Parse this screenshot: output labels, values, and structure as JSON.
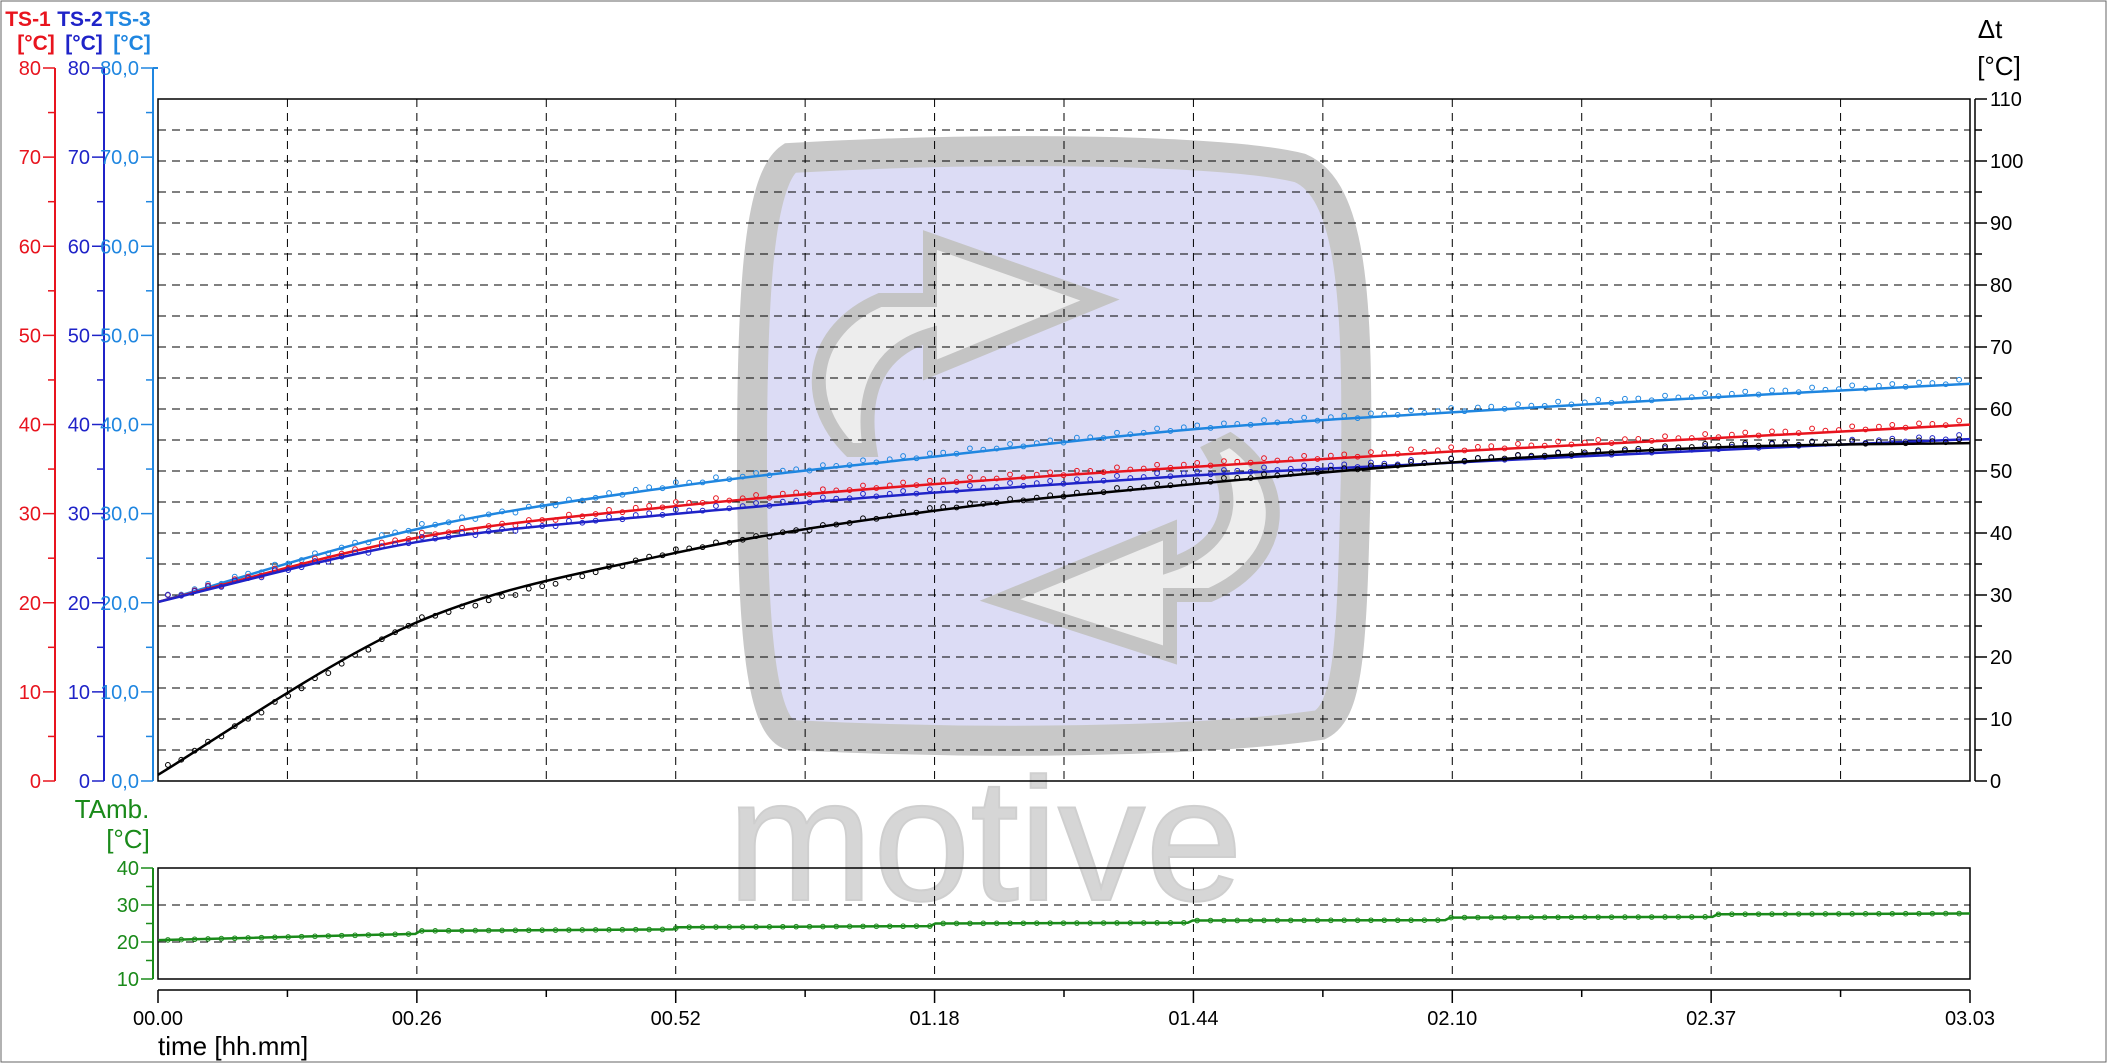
{
  "colors": {
    "ts1": "#e8141e",
    "ts2": "#1f23c8",
    "ts3": "#1f86e0",
    "delta": "#000000",
    "amb": "#1a8a1a",
    "grid": "#000000",
    "watermark_frame": "#c8c8c8",
    "watermark_fill": "#dcdcf5"
  },
  "watermark": {
    "text": "motive"
  },
  "chart_data": [
    {
      "type": "line",
      "panel": "main",
      "grid": true,
      "x_ticks": [
        "00.00",
        "00.26",
        "00.52",
        "01.18",
        "01.44",
        "02.10",
        "02.37",
        "03.03"
      ],
      "xlim": [
        0,
        183
      ],
      "left_axes": [
        {
          "id": "ts1",
          "label_line1": "TS-1",
          "label_line2": "[°C]",
          "ticks": [
            "0",
            "10",
            "20",
            "30",
            "40",
            "50",
            "60",
            "70",
            "80"
          ],
          "ylim": [
            0,
            80
          ]
        },
        {
          "id": "ts2",
          "label_line1": "TS-2",
          "label_line2": "[°C]",
          "ticks": [
            "0",
            "10",
            "20",
            "30",
            "40",
            "50",
            "60",
            "70",
            "80"
          ],
          "ylim": [
            0,
            80
          ]
        },
        {
          "id": "ts3",
          "label_line1": "TS-3",
          "label_line2": "[°C]",
          "ticks": [
            "0,0",
            "10,0",
            "20,0",
            "30,0",
            "40,0",
            "50,0",
            "60,0",
            "70,0",
            "80,0"
          ],
          "ylim": [
            0,
            80
          ]
        }
      ],
      "right_axis": {
        "id": "delta",
        "label_line1": "Δt",
        "label_line2": "[°C]",
        "ticks": [
          "0",
          "10",
          "20",
          "30",
          "40",
          "50",
          "60",
          "70",
          "80",
          "90",
          "100",
          "110"
        ],
        "ylim": [
          0,
          110
        ]
      },
      "series": [
        {
          "axis": "ts3",
          "x": [
            0,
            26,
            52,
            78,
            104,
            130,
            157,
            183
          ],
          "y": [
            21,
            29.5,
            34.5,
            38,
            41.2,
            43.2,
            45,
            46.6
          ]
        },
        {
          "axis": "ts1",
          "x": [
            0,
            26,
            52,
            78,
            104,
            130,
            157,
            183
          ],
          "y": [
            21,
            28.5,
            32.2,
            34.8,
            36.8,
            38.6,
            40.2,
            41.8
          ]
        },
        {
          "axis": "ts2",
          "x": [
            0,
            26,
            52,
            78,
            104,
            130,
            157,
            183
          ],
          "y": [
            21,
            28,
            31.3,
            33.8,
            35.8,
            37.3,
            38.8,
            40.1
          ]
        },
        {
          "axis": "delta",
          "x": [
            0,
            26,
            52,
            78,
            104,
            130,
            157,
            183
          ],
          "y": [
            1,
            25.5,
            36.7,
            43.5,
            47.8,
            51.3,
            53.8,
            54.5
          ]
        }
      ]
    },
    {
      "type": "line",
      "panel": "ambient",
      "grid": true,
      "x_ticks": [
        "00.00",
        "00.26",
        "00.52",
        "01.18",
        "01.44",
        "02.10",
        "02.37",
        "03.03"
      ],
      "xlabel": "time [hh.mm]",
      "xlim": [
        0,
        183
      ],
      "axis": {
        "id": "amb",
        "label_line1": "TAmb.",
        "label_line2": "[°C]",
        "ticks": [
          "10",
          "20",
          "30",
          "40"
        ],
        "ylim": [
          10,
          40
        ]
      },
      "series": [
        {
          "axis": "amb",
          "x": [
            0,
            26,
            26.5,
            52,
            52.5,
            78,
            78.5,
            104,
            104.5,
            130,
            130.5,
            157,
            157.5,
            183
          ],
          "y": [
            20.5,
            22.2,
            23,
            23.4,
            24,
            24.3,
            25,
            25.2,
            25.8,
            25.9,
            26.6,
            26.8,
            27.5,
            27.7
          ]
        }
      ]
    }
  ]
}
